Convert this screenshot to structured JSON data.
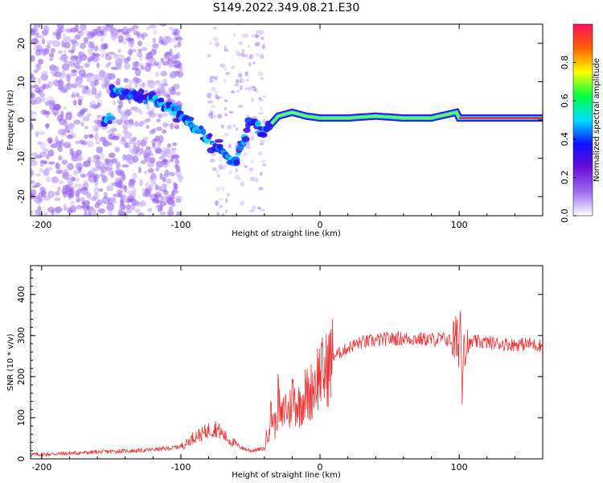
{
  "title": "S149.2022.349.08.21.E30",
  "chart_data": [
    {
      "type": "heatmap",
      "title": "S149.2022.349.08.21.E30",
      "xlabel": "Height of straight line (km)",
      "ylabel": "Frequency (Hz)",
      "xlim": [
        -208,
        160
      ],
      "ylim": [
        -25,
        25
      ],
      "x_ticks": [
        -200,
        -100,
        0,
        100
      ],
      "y_ticks": [
        -20,
        -10,
        0,
        10,
        20
      ],
      "colorbar": {
        "label": "Normalized spectral amplitude",
        "range": [
          0,
          1
        ],
        "ticks": [
          0.0,
          0.2,
          0.4,
          0.6,
          0.8
        ],
        "colors": [
          "#ffffff",
          "#9d6cf0",
          "#6a0dd8",
          "#1010ff",
          "#00e0ff",
          "#00ff40",
          "#ffff00",
          "#ff6000",
          "#ff1060"
        ]
      },
      "ridge": {
        "x": [
          -150,
          -130,
          -115,
          -100,
          -90,
          -75,
          -60,
          -50,
          -40,
          -30,
          -20,
          -10,
          0,
          20,
          40,
          60,
          80,
          98,
          100,
          110,
          130,
          160
        ],
        "y": [
          7,
          6.5,
          5,
          1,
          -2,
          -7,
          -11,
          0,
          -3,
          1,
          2,
          1,
          0.5,
          0.5,
          1,
          0.5,
          0.5,
          2,
          0.5,
          0.5,
          0.5,
          0.5
        ]
      }
    },
    {
      "type": "line",
      "xlabel": "Height of straight line (km)",
      "ylabel": "SNR (10 * v/v)",
      "xlim": [
        -208,
        160
      ],
      "ylim": [
        0,
        470
      ],
      "x_ticks": [
        -200,
        -100,
        0,
        100
      ],
      "y_ticks": [
        0,
        100,
        200,
        300,
        400
      ],
      "line_color": "#ee3333",
      "series": [
        {
          "x": [
            -208,
            -190,
            -170,
            -150,
            -130,
            -110,
            -100,
            -95,
            -90,
            -85,
            -80,
            -75,
            -70,
            -65,
            -60,
            -55,
            -50,
            -45,
            -40,
            -38,
            -35,
            -32,
            -30,
            -28,
            -25,
            -22,
            -20,
            -18,
            -15,
            -12,
            -10,
            -8,
            -5,
            -2,
            0,
            3,
            5,
            8,
            10,
            15,
            20,
            25,
            30,
            40,
            50,
            60,
            70,
            80,
            90,
            95,
            98,
            100,
            101,
            102,
            103,
            105,
            110,
            120,
            130,
            140,
            150,
            160
          ],
          "y": [
            10,
            12,
            15,
            18,
            20,
            25,
            30,
            40,
            55,
            60,
            70,
            75,
            60,
            45,
            35,
            25,
            20,
            22,
            25,
            60,
            110,
            80,
            150,
            90,
            130,
            110,
            160,
            140,
            130,
            150,
            160,
            150,
            180,
            200,
            210,
            205,
            220,
            240,
            250,
            260,
            270,
            278,
            283,
            288,
            292,
            293,
            292,
            290,
            292,
            285,
            280,
            290,
            370,
            140,
            320,
            270,
            285,
            283,
            280,
            278,
            280,
            275
          ]
        }
      ]
    }
  ]
}
